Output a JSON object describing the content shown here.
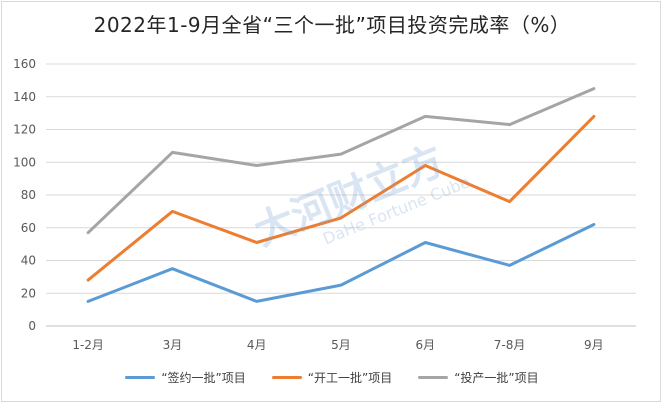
{
  "chart_data": {
    "type": "line",
    "title": "2022年1-9月全省“三个一批”项目投资完成率（%）",
    "categories": [
      "1-2月",
      "3月",
      "4月",
      "5月",
      "6月",
      "7-8月",
      "9月"
    ],
    "ylim": [
      0,
      160
    ],
    "yticks": [
      0,
      20,
      40,
      60,
      80,
      100,
      120,
      140,
      160
    ],
    "grid": true,
    "legend_position": "bottom",
    "series": [
      {
        "name": "“签约一批”项目",
        "color": "#5b9bd5",
        "values": [
          15,
          35,
          15,
          25,
          51,
          37,
          62
        ]
      },
      {
        "name": "“开工一批”项目",
        "color": "#ed7d31",
        "values": [
          28,
          70,
          51,
          66,
          98,
          76,
          128
        ]
      },
      {
        "name": "“投产一批”项目",
        "color": "#a5a5a5",
        "values": [
          57,
          106,
          98,
          105,
          128,
          123,
          145
        ]
      }
    ]
  },
  "watermark": {
    "cn": "大河财立方",
    "en": "DaHe Fortune Cube"
  }
}
